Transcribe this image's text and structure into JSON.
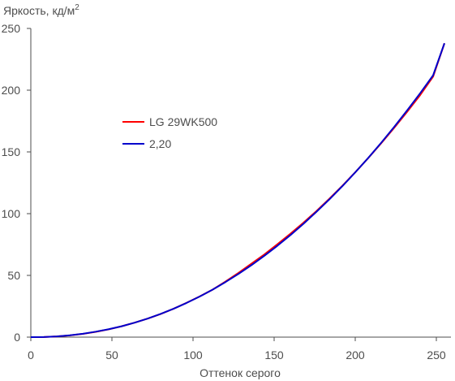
{
  "chart_data": {
    "type": "line",
    "title": "",
    "ylabel": "Яркость, кд/м",
    "ylabel_superscript": "2",
    "xlabel": "Оттенок серого",
    "xlim": [
      0,
      255
    ],
    "ylim": [
      0,
      250
    ],
    "x_ticks": [
      0,
      50,
      100,
      150,
      200,
      250
    ],
    "x_tick_labels": [
      "0",
      "50",
      "100",
      "150",
      "200",
      "250"
    ],
    "y_ticks": [
      0,
      50,
      100,
      150,
      200,
      250
    ],
    "y_tick_labels": [
      "0",
      "50",
      "100",
      "150",
      "200",
      "250"
    ],
    "grid": false,
    "legend_position": "center-left",
    "series": [
      {
        "name": "LG 29WK500",
        "color": "#ff0000",
        "x": [
          0,
          8,
          16,
          24,
          32,
          40,
          48,
          56,
          64,
          72,
          80,
          88,
          96,
          104,
          112,
          120,
          128,
          136,
          144,
          152,
          160,
          168,
          176,
          184,
          192,
          200,
          208,
          216,
          224,
          232,
          240,
          248,
          255
        ],
        "y": [
          0,
          0.12,
          0.6,
          1.4,
          2.6,
          4.3,
          6.3,
          8.8,
          11.7,
          15.0,
          18.7,
          23.0,
          27.8,
          32.9,
          38.4,
          45.0,
          52.0,
          59.5,
          67.0,
          75.2,
          83.7,
          92.6,
          102.0,
          112.0,
          122.5,
          133.5,
          145.0,
          157.0,
          169.5,
          182.5,
          196.0,
          211.0,
          238
        ]
      },
      {
        "name": "2,20",
        "color": "#0000cc",
        "x": [
          0,
          8,
          16,
          24,
          32,
          40,
          48,
          56,
          64,
          72,
          80,
          88,
          96,
          104,
          112,
          120,
          128,
          136,
          144,
          152,
          160,
          168,
          176,
          184,
          192,
          200,
          208,
          216,
          224,
          232,
          240,
          248,
          255
        ],
        "y": [
          0,
          0.12,
          0.6,
          1.5,
          2.7,
          4.4,
          6.4,
          8.8,
          11.7,
          15.0,
          18.8,
          23.0,
          27.7,
          32.8,
          38.4,
          44.6,
          51.2,
          58.3,
          65.9,
          74.0,
          82.6,
          91.7,
          101.4,
          111.5,
          122.2,
          133.4,
          145.1,
          157.4,
          170.2,
          183.6,
          197.5,
          212.0,
          238
        ]
      }
    ]
  }
}
